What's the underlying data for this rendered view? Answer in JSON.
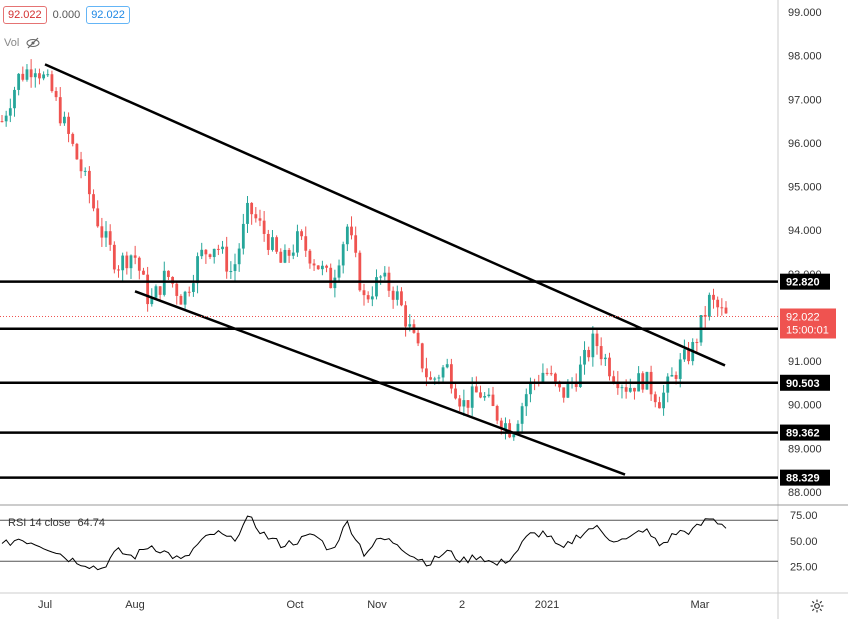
{
  "header": {
    "open_value": "92.022",
    "change_value": "0.000",
    "close_value": "92.022",
    "volume_label": "Vol"
  },
  "rsi": {
    "label": "RSI 14 close",
    "value": "64.74",
    "levels": [
      75,
      50,
      25
    ],
    "upper_band": 70,
    "lower_band": 30
  },
  "colors": {
    "up": "#26a69a",
    "down": "#ef5350",
    "line": "#000000",
    "grid": "#e0e3eb",
    "axis_text": "#333333",
    "price_badge": "#ef5350"
  },
  "chart_data": {
    "type": "candlestick",
    "y_axis_ticks": [
      "99.000",
      "98.000",
      "97.000",
      "96.000",
      "95.000",
      "94.000",
      "93.000",
      "92.000",
      "91.000",
      "90.000",
      "89.000",
      "88.000"
    ],
    "x_axis_labels": [
      "Jul",
      "Aug",
      "Oct",
      "Nov",
      "2",
      "2021",
      "Mar"
    ],
    "ylim": [
      88,
      99
    ],
    "current_price": "92.022",
    "countdown": "15:00:01",
    "horizontal_levels": [
      "92.820",
      "91.741",
      "90.503",
      "89.362",
      "88.329"
    ],
    "trend_lines": [
      {
        "from": {
          "date": "Jul",
          "price": 97.8
        },
        "to": {
          "date": "Mar",
          "price": 90.9
        }
      },
      {
        "from": {
          "date": "Aug",
          "price": 92.6
        },
        "to": {
          "date": "Feb",
          "price": 88.4
        }
      }
    ],
    "price_path": [
      [
        "Jun",
        96.5
      ],
      [
        "Jun",
        97.5
      ],
      [
        "Jul",
        97.8
      ],
      [
        "Jul",
        97.2
      ],
      [
        "Jul",
        96.2
      ],
      [
        "Jul",
        95.2
      ],
      [
        "Jul",
        94.0
      ],
      [
        "Aug",
        93.2
      ],
      [
        "Aug",
        93.5
      ],
      [
        "Aug",
        92.3
      ],
      [
        "Aug",
        93.0
      ],
      [
        "Aug",
        92.4
      ],
      [
        "Sep",
        93.4
      ],
      [
        "Sep",
        93.7
      ],
      [
        "Sep",
        93.0
      ],
      [
        "Sep",
        94.5
      ],
      [
        "Oct",
        93.9
      ],
      [
        "Oct",
        93.2
      ],
      [
        "Oct",
        93.8
      ],
      [
        "Oct",
        93.3
      ],
      [
        "Oct",
        92.8
      ],
      [
        "Nov",
        94.1
      ],
      [
        "Nov",
        92.4
      ],
      [
        "Nov",
        92.9
      ],
      [
        "Nov",
        92.5
      ],
      [
        "Nov",
        91.5
      ],
      [
        "Dec",
        90.5
      ],
      [
        "Dec",
        90.9
      ],
      [
        "Dec",
        90.0
      ],
      [
        "Dec",
        90.3
      ],
      [
        "Jan",
        89.8
      ],
      [
        "Jan",
        89.4
      ],
      [
        "Jan",
        90.4
      ],
      [
        "Jan",
        90.8
      ],
      [
        "Feb",
        90.2
      ],
      [
        "Feb",
        90.7
      ],
      [
        "Feb",
        91.5
      ],
      [
        "Feb",
        90.8
      ],
      [
        "Feb",
        90.4
      ],
      [
        "Feb",
        90.6
      ],
      [
        "Feb",
        90.1
      ],
      [
        "Mar",
        90.8
      ],
      [
        "Mar",
        91.3
      ],
      [
        "Mar",
        92.4
      ],
      [
        "Mar",
        92.0
      ]
    ],
    "rsi_path": [
      [
        "Jun",
        45
      ],
      [
        "Jun",
        52
      ],
      [
        "Jul",
        48
      ],
      [
        "Jul",
        42
      ],
      [
        "Jul",
        33
      ],
      [
        "Jul",
        28
      ],
      [
        "Jul",
        22
      ],
      [
        "Aug",
        40
      ],
      [
        "Aug",
        34
      ],
      [
        "Aug",
        46
      ],
      [
        "Aug",
        38
      ],
      [
        "Aug",
        30
      ],
      [
        "Sep",
        48
      ],
      [
        "Sep",
        58
      ],
      [
        "Sep",
        50
      ],
      [
        "Sep",
        72
      ],
      [
        "Oct",
        55
      ],
      [
        "Oct",
        46
      ],
      [
        "Oct",
        50
      ],
      [
        "Oct",
        56
      ],
      [
        "Oct",
        40
      ],
      [
        "Nov",
        68
      ],
      [
        "Nov",
        38
      ],
      [
        "Nov",
        52
      ],
      [
        "Nov",
        48
      ],
      [
        "Nov",
        35
      ],
      [
        "Dec",
        28
      ],
      [
        "Dec",
        40
      ],
      [
        "Dec",
        30
      ],
      [
        "Dec",
        36
      ],
      [
        "Jan",
        26
      ],
      [
        "Jan",
        34
      ],
      [
        "Jan",
        55
      ],
      [
        "Jan",
        58
      ],
      [
        "Feb",
        40
      ],
      [
        "Feb",
        55
      ],
      [
        "Feb",
        64
      ],
      [
        "Feb",
        52
      ],
      [
        "Feb",
        50
      ],
      [
        "Feb",
        62
      ],
      [
        "Feb",
        45
      ],
      [
        "Mar",
        58
      ],
      [
        "Mar",
        60
      ],
      [
        "Mar",
        72
      ],
      [
        "Mar",
        64.74
      ]
    ]
  }
}
